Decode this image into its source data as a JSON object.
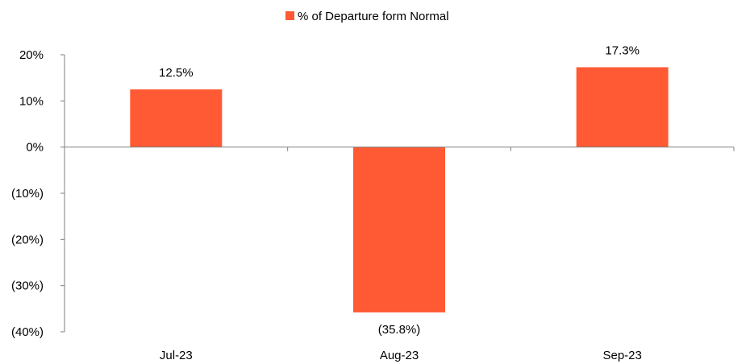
{
  "chart_data": {
    "type": "bar",
    "categories": [
      "Jul-23",
      "Aug-23",
      "Sep-23"
    ],
    "series": [
      {
        "name": "% of Departure form Normal",
        "values": [
          12.5,
          -35.8,
          17.3
        ],
        "data_labels": [
          "12.5%",
          "(35.8%)",
          "17.3%"
        ],
        "color": "#FF5A33"
      }
    ],
    "ylim": [
      -40,
      20
    ],
    "yticks": [
      20,
      10,
      0,
      -10,
      -20,
      -30,
      -40
    ],
    "ytick_labels": [
      "20%",
      "10%",
      "0%",
      "(10%)",
      "(20%)",
      "(30%)",
      "(40%)"
    ],
    "title": "",
    "xlabel": "",
    "ylabel": "",
    "grid": false,
    "legend": {
      "position": "top-center"
    }
  }
}
